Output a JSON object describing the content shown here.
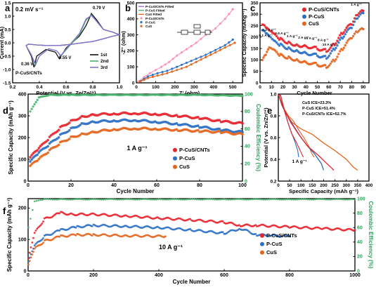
{
  "colors": {
    "red": "#e8222b",
    "blue": "#2b6fc4",
    "orange": "#e4641c",
    "green": "#44b369",
    "purple": "#8a6fd4",
    "gray": "#777777",
    "black": "#111111",
    "pink": "#ff8fb0"
  },
  "chart_data": [
    {
      "panel": "a",
      "type": "line",
      "annotation": "0.2 mV s⁻¹",
      "xlabel": "Potential (V vs. Zn/Zn²⁺)",
      "ylabel": "Current (mA)",
      "xlim": [
        0.2,
        1.0
      ],
      "ylim": [
        -1.5,
        1.5
      ],
      "xticks": [
        "0.2",
        "0.4",
        "0.6",
        "0.8",
        "1.0"
      ],
      "yticks": [
        "-1.5",
        "-1.0",
        "-0.5",
        "0.0",
        "0.5",
        "1.0",
        "1.5"
      ],
      "peak_labels": [
        "0.79 V",
        "0.55 V",
        "0.36 V"
      ],
      "sample_label": "P-CuS/CNTs",
      "legend": [
        "1st",
        "2nd",
        "3rd"
      ],
      "series": [
        {
          "name": "1st",
          "x": [
            0.3,
            0.34,
            0.36,
            0.38,
            0.45,
            0.52,
            0.55,
            0.6,
            0.7,
            0.75,
            0.79,
            0.83,
            0.88,
            0.95,
            1.0,
            0.95,
            0.88,
            0.8,
            0.72,
            0.65,
            0.55,
            0.45,
            0.38,
            0.32,
            0.3
          ],
          "y": [
            -0.1,
            -0.5,
            -0.92,
            -0.5,
            -0.25,
            -0.35,
            -0.6,
            -0.2,
            0.25,
            0.65,
            1.1,
            0.85,
            0.5,
            0.4,
            0.3,
            0.25,
            0.15,
            0.05,
            0.0,
            -0.05,
            -0.1,
            -0.1,
            -0.08,
            -0.05,
            -0.1
          ]
        },
        {
          "name": "2nd",
          "x": [
            0.3,
            0.34,
            0.37,
            0.4,
            0.47,
            0.53,
            0.56,
            0.62,
            0.7,
            0.75,
            0.79,
            0.83,
            0.88,
            0.95,
            1.0,
            0.95,
            0.88,
            0.8,
            0.72,
            0.65,
            0.55,
            0.45,
            0.38,
            0.32,
            0.3
          ],
          "y": [
            -0.1,
            -0.45,
            -0.85,
            -0.5,
            -0.22,
            -0.3,
            -0.5,
            -0.15,
            0.3,
            0.85,
            1.05,
            0.8,
            0.5,
            0.4,
            0.3,
            0.25,
            0.15,
            0.05,
            0.0,
            -0.05,
            -0.1,
            -0.1,
            -0.08,
            -0.05,
            -0.1
          ]
        },
        {
          "name": "3rd",
          "x": [
            0.3,
            0.34,
            0.37,
            0.4,
            0.47,
            0.53,
            0.56,
            0.62,
            0.7,
            0.75,
            0.79,
            0.83,
            0.88,
            0.95,
            1.0,
            0.95,
            0.88,
            0.8,
            0.72,
            0.65,
            0.55,
            0.45,
            0.38,
            0.32,
            0.3
          ],
          "y": [
            -0.1,
            -0.45,
            -0.8,
            -0.5,
            -0.22,
            -0.3,
            -0.48,
            -0.12,
            0.35,
            0.9,
            1.02,
            0.8,
            0.5,
            0.4,
            0.3,
            0.25,
            0.15,
            0.05,
            0.0,
            -0.05,
            -0.1,
            -0.1,
            -0.08,
            -0.05,
            -0.1
          ]
        }
      ]
    },
    {
      "panel": "b",
      "type": "scatter",
      "xlabel": "Z' (ohm)",
      "ylabel": "-Z'' (ohm)",
      "xlim": [
        0,
        550
      ],
      "ylim": [
        0,
        500
      ],
      "xticks": [
        "0",
        "100",
        "200",
        "300",
        "400",
        "500"
      ],
      "yticks": [
        "0",
        "100",
        "200",
        "300",
        "400",
        "500"
      ],
      "legend": [
        "P-CuS/CNTs Fitted",
        "P-CuS Fitted",
        "CuS Fitted",
        "P-CuS/CNTs",
        "P-CuS",
        "CuS"
      ],
      "series": [
        {
          "name": "P-CuS/CNTs",
          "x": [
            10,
            40,
            70,
            100,
            130,
            170,
            210,
            260,
            310,
            360,
            410,
            460,
            500
          ],
          "y": [
            8,
            35,
            60,
            80,
            100,
            130,
            170,
            210,
            250,
            300,
            340,
            400,
            460
          ]
        },
        {
          "name": "P-CuS",
          "x": [
            20,
            60,
            110,
            160,
            210,
            260,
            310,
            360,
            410,
            460,
            500
          ],
          "y": [
            10,
            40,
            60,
            75,
            100,
            125,
            150,
            175,
            205,
            235,
            270
          ]
        },
        {
          "name": "CuS",
          "x": [
            20,
            60,
            110,
            160,
            210,
            260,
            310,
            360,
            410,
            460,
            510
          ],
          "y": [
            8,
            30,
            45,
            60,
            80,
            100,
            130,
            160,
            190,
            220,
            250
          ]
        }
      ]
    },
    {
      "panel": "c",
      "type": "scatter",
      "xlabel": "Cycle Number",
      "ylabel": "Specific Capacity (mAhg⁻¹)",
      "xlim": [
        0,
        95
      ],
      "ylim": [
        0,
        350
      ],
      "xticks": [
        "0",
        "10",
        "20",
        "30",
        "40",
        "50",
        "60",
        "70",
        "80",
        "90"
      ],
      "yticks": [
        "0",
        "50",
        "100",
        "150",
        "200",
        "250",
        "300",
        "350"
      ],
      "legend": [
        "P-CuS/CNTs",
        "P-CuS",
        "CuS"
      ],
      "rate_labels": [
        "0.1 A g⁻¹",
        "0.2 A g⁻¹",
        "0.5 A g⁻¹",
        "1 A g⁻¹",
        "2 A g⁻¹",
        "5 A g⁻¹",
        "8 A g⁻¹",
        "10 A g⁻¹",
        "1 A g⁻¹"
      ],
      "series": [
        {
          "name": "P-CuS/CNTs",
          "x": [
            2,
            5,
            8,
            12,
            18,
            25,
            32,
            40,
            50,
            58,
            65,
            72,
            80,
            85,
            90
          ],
          "y": [
            255,
            240,
            225,
            210,
            190,
            175,
            165,
            160,
            150,
            140,
            170,
            220,
            260,
            300,
            315
          ]
        },
        {
          "name": "P-CuS",
          "x": [
            2,
            5,
            8,
            12,
            18,
            25,
            32,
            40,
            50,
            58,
            65,
            72,
            80,
            85,
            90
          ],
          "y": [
            230,
            215,
            200,
            180,
            165,
            150,
            140,
            130,
            120,
            110,
            150,
            200,
            245,
            285,
            305
          ]
        },
        {
          "name": "CuS",
          "x": [
            2,
            5,
            8,
            12,
            18,
            25,
            32,
            40,
            50,
            58,
            65,
            72,
            80,
            85,
            90
          ],
          "y": [
            100,
            120,
            150,
            140,
            120,
            110,
            100,
            90,
            80,
            70,
            100,
            150,
            200,
            225,
            235
          ]
        }
      ]
    },
    {
      "panel": "d",
      "type": "scatter",
      "xlabel": "Cycle Number",
      "ylabel": "Specific Capacity (mAh g⁻¹)",
      "y2label": "Coulombic Efficiency (%)",
      "xlim": [
        0,
        100
      ],
      "ylim": [
        0,
        400
      ],
      "y2lim": [
        0,
        100
      ],
      "xticks": [
        "0",
        "20",
        "40",
        "60",
        "80",
        "100"
      ],
      "yticks": [
        "0",
        "100",
        "200",
        "300",
        "400"
      ],
      "y2ticks": [
        "0",
        "20",
        "40",
        "60",
        "80",
        "100"
      ],
      "rate_note": "1 A g⁻¹",
      "legend": [
        "P-CuS/CNTs",
        "P-CuS",
        "CuS"
      ],
      "series": [
        {
          "name": "P-CuS/CNTs",
          "x": [
            1,
            5,
            10,
            15,
            20,
            25,
            30,
            40,
            50,
            60,
            70,
            80,
            90,
            100
          ],
          "y": [
            110,
            150,
            200,
            245,
            275,
            295,
            305,
            310,
            312,
            308,
            300,
            290,
            275,
            265
          ]
        },
        {
          "name": "P-CuS",
          "x": [
            1,
            5,
            10,
            15,
            20,
            25,
            30,
            40,
            50,
            60,
            70,
            80,
            90,
            100
          ],
          "y": [
            90,
            130,
            170,
            210,
            240,
            262,
            272,
            278,
            280,
            272,
            262,
            250,
            235,
            225
          ]
        },
        {
          "name": "CuS",
          "x": [
            1,
            5,
            10,
            15,
            20,
            25,
            30,
            40,
            50,
            60,
            70,
            80,
            90,
            100
          ],
          "y": [
            70,
            100,
            140,
            175,
            200,
            215,
            225,
            238,
            242,
            240,
            235,
            230,
            225,
            215
          ]
        },
        {
          "name": "CE",
          "x": [
            1,
            5,
            10,
            20,
            40,
            60,
            80,
            100
          ],
          "y": [
            80,
            96,
            99,
            99,
            99,
            99,
            99,
            98
          ]
        }
      ]
    },
    {
      "panel": "e",
      "type": "line",
      "xlabel": "Specific Capacity (mAh g⁻¹)",
      "ylabel": "Potential (V vs. Zn/Zn²⁺)",
      "xlim": [
        0,
        400
      ],
      "ylim": [
        0.2,
        1.0
      ],
      "xticks": [
        "0",
        "50",
        "100",
        "150",
        "200",
        "250",
        "300",
        "350",
        "400"
      ],
      "yticks": [
        "0.2",
        "0.4",
        "0.6",
        "0.8",
        "1.0"
      ],
      "legend": [
        "CuS ICE=23.3%",
        "P-CuS ICE=51.4%",
        "P-CuS/CNTs ICE=52.7%"
      ],
      "rate_note": "1 A g⁻¹",
      "series": [
        {
          "name": "CuS ICE=23.3%",
          "x": [
            0,
            15,
            35,
            60,
            100,
            150,
            200,
            250,
            300,
            330,
            350
          ],
          "y": [
            1.0,
            0.9,
            0.82,
            0.74,
            0.68,
            0.63,
            0.55,
            0.48,
            0.4,
            0.33,
            0.3
          ]
        },
        {
          "name": "P-CuS ICE=51.4%",
          "x": [
            0,
            20,
            45,
            70,
            100,
            130,
            160,
            190,
            200
          ],
          "y": [
            1.0,
            0.88,
            0.78,
            0.7,
            0.6,
            0.52,
            0.45,
            0.36,
            0.3
          ]
        },
        {
          "name": "P-CuS/CNTs ICE=52.7%",
          "x": [
            0,
            25,
            55,
            90,
            130,
            180,
            210,
            230,
            245
          ],
          "y": [
            1.0,
            0.86,
            0.74,
            0.63,
            0.52,
            0.43,
            0.37,
            0.33,
            0.3
          ]
        }
      ]
    },
    {
      "panel": "f",
      "type": "scatter",
      "xlabel": "Cycle Number",
      "ylabel": "Specific Capacity (mAh g⁻¹)",
      "y2label": "Coulombic Efficiency (%)",
      "xlim": [
        0,
        1000
      ],
      "ylim": [
        0,
        230
      ],
      "y2lim": [
        0,
        100
      ],
      "xticks": [
        "0",
        "200",
        "400",
        "600",
        "800",
        "1000"
      ],
      "yticks": [
        "0",
        "100",
        "200"
      ],
      "y2ticks": [
        "0",
        "20",
        "40",
        "60",
        "80",
        "100"
      ],
      "rate_note": "10 A g⁻¹",
      "legend": [
        "P-CuS/CNTs",
        "P-CuS",
        "CuS"
      ],
      "series": [
        {
          "name": "P-CuS/CNTs",
          "x": [
            1,
            20,
            50,
            100,
            130,
            200,
            300,
            400,
            500,
            600,
            650,
            700,
            800,
            900,
            1000
          ],
          "y": [
            40,
            120,
            165,
            185,
            180,
            180,
            175,
            168,
            162,
            155,
            145,
            145,
            140,
            135,
            130
          ]
        },
        {
          "name": "P-CuS",
          "x": [
            1,
            20,
            50,
            100,
            150,
            200,
            300,
            400,
            500,
            600,
            650,
            700,
            800
          ],
          "y": [
            30,
            80,
            110,
            130,
            140,
            145,
            142,
            138,
            130,
            120,
            135,
            115,
            110
          ]
        },
        {
          "name": "CuS",
          "x": [
            1,
            20,
            50,
            100,
            150,
            200,
            300,
            420
          ],
          "y": [
            20,
            70,
            95,
            110,
            115,
            115,
            112,
            110
          ]
        },
        {
          "name": "CE",
          "x": [
            1,
            20,
            50,
            100,
            200,
            400,
            600,
            800,
            1000
          ],
          "y": [
            60,
            96,
            99,
            99,
            99,
            99,
            99,
            99,
            99
          ]
        }
      ]
    }
  ]
}
